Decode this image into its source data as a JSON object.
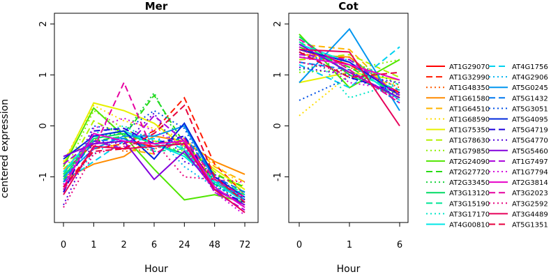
{
  "chart_data": [
    {
      "type": "line",
      "title": "Mer",
      "xlabel": "Hour",
      "ylabel": "centered expression",
      "categories": [
        "0",
        "1",
        "2",
        "6",
        "24",
        "48",
        "72"
      ],
      "yticks": [
        "-1",
        "0",
        "1",
        "2"
      ],
      "ylim": [
        -1.95,
        2.1
      ],
      "series": [
        {
          "name": "AT1G29070",
          "values": [
            -0.9,
            -0.35,
            -0.3,
            -0.4,
            -0.35,
            -1.1,
            -1.45
          ]
        },
        {
          "name": "AT1G32990",
          "values": [
            -1.2,
            -0.45,
            -0.35,
            -0.1,
            0.55,
            -0.75,
            -1.35
          ]
        },
        {
          "name": "AT1G48350",
          "values": [
            -1.1,
            -0.25,
            -0.5,
            -0.45,
            -0.3,
            -1.1,
            -1.6
          ]
        },
        {
          "name": "AT1G61580",
          "values": [
            -1.05,
            -0.75,
            -0.6,
            -0.2,
            -0.3,
            -0.7,
            -0.95
          ]
        },
        {
          "name": "AT1G64510",
          "values": [
            -0.85,
            -0.3,
            -0.45,
            -0.55,
            -0.25,
            -0.8,
            -1.1
          ]
        },
        {
          "name": "AT1G68590",
          "values": [
            -0.7,
            0.4,
            0.1,
            -0.05,
            -0.25,
            -0.75,
            -1.2
          ]
        },
        {
          "name": "AT1G75350",
          "values": [
            -0.75,
            0.45,
            0.3,
            0.05,
            -0.4,
            -0.85,
            -1.25
          ]
        },
        {
          "name": "AT1G78630",
          "values": [
            -1.0,
            0.1,
            -0.2,
            -0.3,
            -0.35,
            -0.9,
            -1.3
          ]
        },
        {
          "name": "AT1G79850",
          "values": [
            -0.95,
            0.3,
            -0.05,
            -0.35,
            -0.5,
            -1.0,
            -1.35
          ]
        },
        {
          "name": "AT2G24090",
          "values": [
            -0.8,
            0.35,
            -0.2,
            -0.85,
            -1.45,
            -1.35,
            -1.5
          ]
        },
        {
          "name": "AT2G27720",
          "values": [
            -1.05,
            -0.3,
            -0.2,
            0.6,
            -0.35,
            -0.95,
            -1.2
          ]
        },
        {
          "name": "AT2G33450",
          "values": [
            -0.9,
            -0.2,
            -0.15,
            0.65,
            -0.5,
            -1.05,
            -1.45
          ]
        },
        {
          "name": "AT3G13120",
          "values": [
            -1.0,
            -0.25,
            -0.15,
            -0.35,
            -0.55,
            -1.15,
            -1.35
          ]
        },
        {
          "name": "AT3G15190",
          "values": [
            -0.95,
            -0.2,
            -0.25,
            -0.5,
            -0.45,
            -1.1,
            -1.3
          ]
        },
        {
          "name": "AT3G17170",
          "values": [
            -1.05,
            -0.15,
            0.0,
            -0.3,
            -0.4,
            -1.2,
            -1.4
          ]
        },
        {
          "name": "AT4G00810",
          "values": [
            -0.9,
            -0.2,
            -0.1,
            -0.35,
            -0.6,
            -1.1,
            -1.5
          ]
        },
        {
          "name": "AT4G1756",
          "values": [
            -1.1,
            -0.7,
            -0.3,
            -0.25,
            -0.45,
            -1.25,
            -1.3
          ]
        },
        {
          "name": "AT4G2906",
          "values": [
            -1.2,
            -0.55,
            -0.2,
            -0.15,
            -0.8,
            -1.2,
            -1.35
          ]
        },
        {
          "name": "AT5G0245",
          "values": [
            -1.0,
            -0.45,
            -0.2,
            -0.2,
            0.0,
            -1.05,
            -1.45
          ]
        },
        {
          "name": "AT5G1432",
          "values": [
            -1.1,
            -0.3,
            -0.25,
            -0.45,
            -0.2,
            -1.0,
            -1.3
          ]
        },
        {
          "name": "AT5G3051",
          "values": [
            -1.25,
            0.0,
            -0.1,
            0.3,
            -0.05,
            -1.15,
            -1.55
          ]
        },
        {
          "name": "AT5G4095",
          "values": [
            -0.65,
            -0.2,
            -0.1,
            -0.65,
            0.05,
            -1.0,
            -1.4
          ]
        },
        {
          "name": "AT5G4719",
          "values": [
            -1.3,
            -0.1,
            -0.05,
            -0.35,
            -0.2,
            -1.25,
            -1.5
          ]
        },
        {
          "name": "AT5G4770",
          "values": [
            -1.55,
            -0.3,
            -0.35,
            0.25,
            -0.7,
            -0.95,
            -1.45
          ]
        },
        {
          "name": "AT5G5460",
          "values": [
            -0.6,
            -0.35,
            -0.3,
            -1.05,
            -0.5,
            -1.25,
            -1.55
          ]
        },
        {
          "name": "AT1G7497",
          "values": [
            -0.75,
            -0.3,
            -0.45,
            0.2,
            -0.3,
            -1.3,
            -1.65
          ]
        },
        {
          "name": "AT1G7794",
          "values": [
            -1.15,
            -0.05,
            0.15,
            -0.1,
            -0.4,
            -1.3,
            -1.75
          ]
        },
        {
          "name": "AT2G3814",
          "values": [
            -1.2,
            -0.15,
            -0.3,
            -0.35,
            -0.3,
            -1.2,
            -1.6
          ]
        },
        {
          "name": "AT3G2023",
          "values": [
            -1.25,
            -0.45,
            0.85,
            -0.55,
            -0.25,
            -1.05,
            -1.4
          ]
        },
        {
          "name": "AT3G2592",
          "values": [
            -1.6,
            -0.55,
            -0.4,
            -0.3,
            -1.0,
            -1.05,
            -1.1
          ]
        },
        {
          "name": "AT3G4489",
          "values": [
            -1.35,
            -0.4,
            -0.45,
            -0.4,
            -0.35,
            -1.25,
            -1.7
          ]
        },
        {
          "name": "AT5G1351",
          "values": [
            -1.2,
            -0.5,
            -0.45,
            -0.15,
            0.4,
            -1.0,
            -1.5
          ]
        }
      ]
    },
    {
      "type": "line",
      "title": "Cot",
      "xlabel": "Hour",
      "ylabel": "",
      "categories": [
        "0",
        "1",
        "6"
      ],
      "yticks": [
        "-1",
        "0",
        "1",
        "2"
      ],
      "ylim": [
        -1.95,
        2.1
      ],
      "series": [
        {
          "name": "AT1G29070",
          "values": [
            1.5,
            1.2,
            0.65
          ]
        },
        {
          "name": "AT1G32990",
          "values": [
            1.3,
            1.35,
            0.6
          ]
        },
        {
          "name": "AT1G48350",
          "values": [
            1.45,
            1.15,
            0.75
          ]
        },
        {
          "name": "AT1G61580",
          "values": [
            1.4,
            1.35,
            0.6
          ]
        },
        {
          "name": "AT1G64510",
          "values": [
            1.6,
            1.5,
            0.55
          ]
        },
        {
          "name": "AT1G68590",
          "values": [
            0.2,
            1.0,
            0.8
          ]
        },
        {
          "name": "AT1G75350",
          "values": [
            0.85,
            1.05,
            0.9
          ]
        },
        {
          "name": "AT1G78630",
          "values": [
            1.3,
            1.4,
            0.95
          ]
        },
        {
          "name": "AT1G79850",
          "values": [
            1.05,
            1.1,
            1.3
          ]
        },
        {
          "name": "AT2G24090",
          "values": [
            1.8,
            0.75,
            1.3
          ]
        },
        {
          "name": "AT2G27720",
          "values": [
            1.55,
            1.15,
            0.6
          ]
        },
        {
          "name": "AT2G33450",
          "values": [
            1.1,
            1.3,
            0.8
          ]
        },
        {
          "name": "AT3G13120",
          "values": [
            1.75,
            1.0,
            0.55
          ]
        },
        {
          "name": "AT3G15190",
          "values": [
            1.65,
            1.05,
            0.7
          ]
        },
        {
          "name": "AT3G17170",
          "values": [
            1.7,
            0.55,
            0.85
          ]
        },
        {
          "name": "AT4G00810",
          "values": [
            1.6,
            1.25,
            0.5
          ]
        },
        {
          "name": "AT4G1756",
          "values": [
            1.2,
            0.75,
            1.55
          ]
        },
        {
          "name": "AT4G2906",
          "values": [
            1.35,
            1.3,
            0.7
          ]
        },
        {
          "name": "AT5G0245",
          "values": [
            0.85,
            1.9,
            0.3
          ]
        },
        {
          "name": "AT5G1432",
          "values": [
            1.25,
            1.1,
            0.45
          ]
        },
        {
          "name": "AT5G3051",
          "values": [
            0.5,
            0.95,
            0.6
          ]
        },
        {
          "name": "AT5G4095",
          "values": [
            1.5,
            1.25,
            0.6
          ]
        },
        {
          "name": "AT5G4719",
          "values": [
            1.45,
            0.95,
            0.65
          ]
        },
        {
          "name": "AT5G4770",
          "values": [
            1.15,
            1.0,
            0.85
          ]
        },
        {
          "name": "AT5G5460",
          "values": [
            1.6,
            1.05,
            0.55
          ]
        },
        {
          "name": "AT1G7497",
          "values": [
            1.4,
            1.3,
            0.6
          ]
        },
        {
          "name": "AT1G7794",
          "values": [
            1.55,
            0.85,
            0.7
          ]
        },
        {
          "name": "AT2G3814",
          "values": [
            1.35,
            1.2,
            0.9
          ]
        },
        {
          "name": "AT3G2023",
          "values": [
            1.7,
            1.1,
            0.45
          ]
        },
        {
          "name": "AT3G2592",
          "values": [
            1.25,
            1.05,
            0.5
          ]
        },
        {
          "name": "AT3G4489",
          "values": [
            1.5,
            1.45,
            0.0
          ]
        },
        {
          "name": "AT5G1351",
          "values": [
            1.45,
            0.95,
            1.05
          ]
        }
      ]
    }
  ],
  "legend": {
    "placement": "right",
    "entries": [
      {
        "name": "AT1G29070",
        "color": "#ff0000",
        "dash": "solid"
      },
      {
        "name": "AT1G32990",
        "color": "#ff1a00",
        "dash": "dashed"
      },
      {
        "name": "AT1G48350",
        "color": "#ff5a00",
        "dash": "dotted"
      },
      {
        "name": "AT1G61580",
        "color": "#ff8c00",
        "dash": "solid"
      },
      {
        "name": "AT1G64510",
        "color": "#ffb400",
        "dash": "dashed"
      },
      {
        "name": "AT1G68590",
        "color": "#ffdc00",
        "dash": "dotted"
      },
      {
        "name": "AT1G75350",
        "color": "#e6f000",
        "dash": "solid"
      },
      {
        "name": "AT1G78630",
        "color": "#b4f000",
        "dash": "dashed"
      },
      {
        "name": "AT1G79850",
        "color": "#8cf000",
        "dash": "dotted"
      },
      {
        "name": "AT2G24090",
        "color": "#50e600",
        "dash": "solid"
      },
      {
        "name": "AT2G27720",
        "color": "#28dc14",
        "dash": "dashed"
      },
      {
        "name": "AT2G33450",
        "color": "#14d23c",
        "dash": "dotted"
      },
      {
        "name": "AT3G13120",
        "color": "#00dc64",
        "dash": "solid"
      },
      {
        "name": "AT3G15190",
        "color": "#00e696",
        "dash": "dashed"
      },
      {
        "name": "AT3G17170",
        "color": "#00e6c8",
        "dash": "dotted"
      },
      {
        "name": "AT4G00810",
        "color": "#00e6e6",
        "dash": "solid"
      },
      {
        "name": "AT4G1756",
        "color": "#00d2f0",
        "dash": "dashed"
      },
      {
        "name": "AT4G2906",
        "color": "#00b4f0",
        "dash": "dotted"
      },
      {
        "name": "AT5G0245",
        "color": "#0096f0",
        "dash": "solid"
      },
      {
        "name": "AT5G1432",
        "color": "#0078f0",
        "dash": "dashed"
      },
      {
        "name": "AT5G3051",
        "color": "#0050e6",
        "dash": "dotted"
      },
      {
        "name": "AT5G4095",
        "color": "#0028dc",
        "dash": "solid"
      },
      {
        "name": "AT5G4719",
        "color": "#1e00dc",
        "dash": "dashed"
      },
      {
        "name": "AT5G4770",
        "color": "#5000dc",
        "dash": "dotted"
      },
      {
        "name": "AT5G5460",
        "color": "#8200dc",
        "dash": "solid"
      },
      {
        "name": "AT1G7497",
        "color": "#aa00dc",
        "dash": "dashed"
      },
      {
        "name": "AT1G7794",
        "color": "#d200dc",
        "dash": "dotted"
      },
      {
        "name": "AT2G3814",
        "color": "#e600c8",
        "dash": "solid"
      },
      {
        "name": "AT3G2023",
        "color": "#e600a0",
        "dash": "dashed"
      },
      {
        "name": "AT3G2592",
        "color": "#e6007d",
        "dash": "dotted"
      },
      {
        "name": "AT3G4489",
        "color": "#e6005a",
        "dash": "solid"
      },
      {
        "name": "AT5G1351",
        "color": "#e6003c",
        "dash": "dashed"
      }
    ]
  }
}
